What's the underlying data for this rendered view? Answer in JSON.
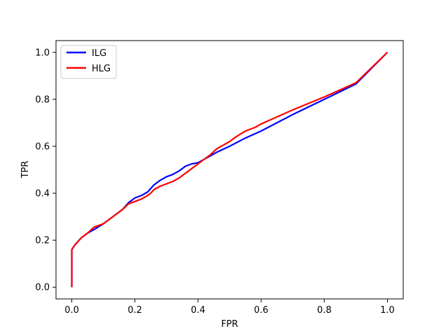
{
  "chart_data": {
    "type": "line",
    "xlabel": "FPR",
    "ylabel": "TPR",
    "xlim": [
      -0.05,
      1.05
    ],
    "ylim": [
      -0.05,
      1.05
    ],
    "xticks": [
      "0.0",
      "0.2",
      "0.4",
      "0.6",
      "0.8",
      "1.0"
    ],
    "yticks": [
      "0.0",
      "0.2",
      "0.4",
      "0.6",
      "0.8",
      "1.0"
    ],
    "grid": false,
    "legend_position": "top-left",
    "series": [
      {
        "name": "ILG",
        "color": "#0000ff",
        "x": [
          0.0,
          0.0,
          0.0,
          0.005,
          0.01,
          0.02,
          0.03,
          0.05,
          0.07,
          0.1,
          0.13,
          0.16,
          0.18,
          0.2,
          0.22,
          0.24,
          0.25,
          0.26,
          0.28,
          0.3,
          0.32,
          0.34,
          0.36,
          0.38,
          0.4,
          0.42,
          0.44,
          0.46,
          0.5,
          0.55,
          0.6,
          0.65,
          0.7,
          0.8,
          0.9,
          1.0
        ],
        "y": [
          0.0,
          0.15,
          0.16,
          0.17,
          0.18,
          0.195,
          0.21,
          0.23,
          0.245,
          0.27,
          0.3,
          0.33,
          0.36,
          0.38,
          0.39,
          0.405,
          0.42,
          0.435,
          0.455,
          0.47,
          0.48,
          0.495,
          0.515,
          0.525,
          0.53,
          0.545,
          0.56,
          0.575,
          0.6,
          0.635,
          0.665,
          0.7,
          0.735,
          0.8,
          0.865,
          1.0
        ]
      },
      {
        "name": "HLG",
        "color": "#ff0000",
        "x": [
          0.0,
          0.0,
          0.0,
          0.005,
          0.01,
          0.02,
          0.03,
          0.05,
          0.07,
          0.1,
          0.13,
          0.16,
          0.18,
          0.2,
          0.22,
          0.24,
          0.25,
          0.26,
          0.28,
          0.3,
          0.32,
          0.34,
          0.36,
          0.38,
          0.4,
          0.42,
          0.44,
          0.46,
          0.48,
          0.5,
          0.52,
          0.55,
          0.58,
          0.6,
          0.65,
          0.7,
          0.8,
          0.9,
          1.0
        ],
        "y": [
          0.0,
          0.15,
          0.16,
          0.17,
          0.18,
          0.195,
          0.21,
          0.23,
          0.255,
          0.27,
          0.3,
          0.33,
          0.355,
          0.365,
          0.375,
          0.39,
          0.4,
          0.415,
          0.43,
          0.44,
          0.45,
          0.465,
          0.485,
          0.505,
          0.525,
          0.545,
          0.565,
          0.59,
          0.605,
          0.62,
          0.64,
          0.665,
          0.68,
          0.695,
          0.725,
          0.755,
          0.81,
          0.87,
          1.0
        ]
      }
    ]
  }
}
